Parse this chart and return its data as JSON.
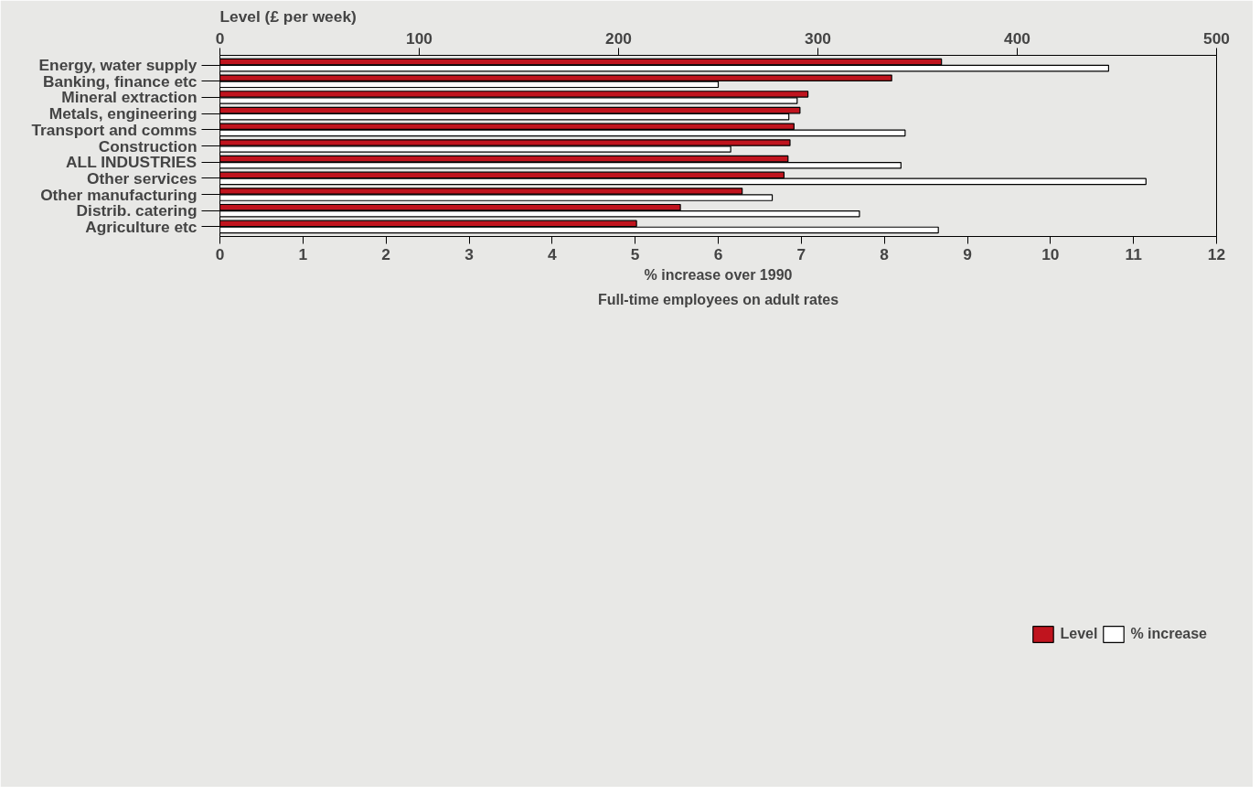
{
  "chart_data": {
    "type": "bar",
    "orientation": "horizontal",
    "categories": [
      "Energy, water supply",
      "Banking, finance etc",
      "Mineral extraction",
      "Metals, engineering",
      "Transport and comms",
      "Construction",
      "ALL INDUSTRIES",
      "Other services",
      "Other manufacturing",
      "Distrib. catering",
      "Agriculture etc"
    ],
    "series": [
      {
        "name": "Level",
        "color": "#c0141e",
        "axis": "x2",
        "values": [
          362,
          337,
          295,
          291,
          288,
          286,
          285,
          283,
          262,
          231,
          209
        ]
      },
      {
        "name": "% increase",
        "color": "#ffffff",
        "values": [
          10.7,
          6.0,
          6.95,
          6.85,
          8.25,
          6.15,
          8.2,
          11.15,
          6.65,
          7.7,
          8.65
        ]
      }
    ],
    "xlim": [
      0,
      12
    ],
    "xticks": [
      0,
      1,
      2,
      3,
      4,
      5,
      6,
      7,
      8,
      9,
      10,
      11,
      12
    ],
    "x2lim": [
      0,
      500
    ],
    "x2ticks": [
      0,
      100,
      200,
      300,
      400,
      500
    ],
    "xlabel": "% increase over 1990",
    "x2label": "Level (£ per week)",
    "annotations": [
      "Full-time employees on adult rates"
    ],
    "legend": "bottom",
    "grid": false
  }
}
